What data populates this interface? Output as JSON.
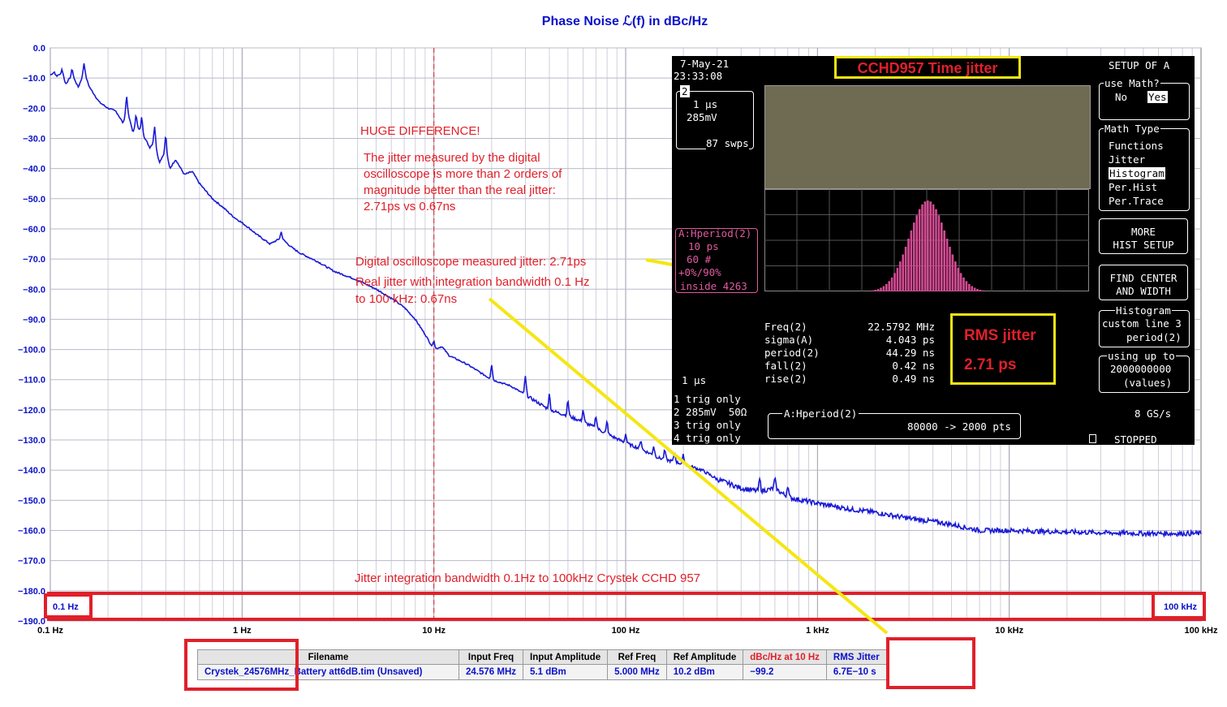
{
  "chart_data": {
    "type": "line",
    "title": "Phase Noise ℒ(f) in dBc/Hz",
    "xscale": "log",
    "xlim": [
      0.1,
      100000
    ],
    "ylim": [
      -190,
      0
    ],
    "x_ticks": [
      {
        "value": 0.1,
        "label": "0.1 Hz"
      },
      {
        "value": 1,
        "label": "1 Hz"
      },
      {
        "value": 10,
        "label": "10 Hz"
      },
      {
        "value": 100,
        "label": "100 Hz"
      },
      {
        "value": 1000,
        "label": "1 kHz"
      },
      {
        "value": 10000,
        "label": "10 kHz"
      },
      {
        "value": 100000,
        "label": "100 kHz"
      }
    ],
    "y_ticks": [
      {
        "value": 0,
        "label": "0.0"
      },
      {
        "value": -10,
        "label": "−10.0"
      },
      {
        "value": -20,
        "label": "−20.0"
      },
      {
        "value": -30,
        "label": "−30.0"
      },
      {
        "value": -40,
        "label": "−40.0"
      },
      {
        "value": -50,
        "label": "−50.0"
      },
      {
        "value": -60,
        "label": "−60.0"
      },
      {
        "value": -70,
        "label": "−70.0"
      },
      {
        "value": -80,
        "label": "−80.0"
      },
      {
        "value": -90,
        "label": "−90.0"
      },
      {
        "value": -100,
        "label": "−100.0"
      },
      {
        "value": -110,
        "label": "−110.0"
      },
      {
        "value": -120,
        "label": "−120.0"
      },
      {
        "value": -130,
        "label": "−130.0"
      },
      {
        "value": -140,
        "label": "−140.0"
      },
      {
        "value": -150,
        "label": "−150.0"
      },
      {
        "value": -160,
        "label": "−160.0"
      },
      {
        "value": -170,
        "label": "−170.0"
      },
      {
        "value": -180,
        "label": "−180.0"
      },
      {
        "value": -190,
        "label": "−190.0"
      }
    ],
    "grid": true,
    "marker_line_x": 10,
    "series": [
      {
        "color": "#1a1ad6",
        "points": [
          [
            0.1,
            -9
          ],
          [
            0.105,
            -8
          ],
          [
            0.11,
            -11
          ],
          [
            0.115,
            -7
          ],
          [
            0.12,
            -12
          ],
          [
            0.13,
            -9
          ],
          [
            0.14,
            -13
          ],
          [
            0.15,
            -8
          ],
          [
            0.16,
            -13
          ],
          [
            0.18,
            -18
          ],
          [
            0.2,
            -20
          ],
          [
            0.22,
            -21
          ],
          [
            0.24,
            -25
          ],
          [
            0.25,
            -20
          ],
          [
            0.27,
            -28
          ],
          [
            0.28,
            -26
          ],
          [
            0.3,
            -28
          ],
          [
            0.33,
            -33
          ],
          [
            0.35,
            -31
          ],
          [
            0.37,
            -38
          ],
          [
            0.4,
            -34
          ],
          [
            0.42,
            -40
          ],
          [
            0.45,
            -37
          ],
          [
            0.5,
            -42
          ],
          [
            0.55,
            -41
          ],
          [
            0.6,
            -45
          ],
          [
            0.7,
            -50
          ],
          [
            0.8,
            -53
          ],
          [
            0.9,
            -56
          ],
          [
            1,
            -58
          ],
          [
            1.1,
            -60
          ],
          [
            1.2,
            -62
          ],
          [
            1.4,
            -65
          ],
          [
            1.6,
            -63
          ],
          [
            1.8,
            -66
          ],
          [
            2,
            -68
          ],
          [
            2.5,
            -71
          ],
          [
            3,
            -74
          ],
          [
            4,
            -77
          ],
          [
            5,
            -80
          ],
          [
            6,
            -83
          ],
          [
            7,
            -86
          ],
          [
            8,
            -90
          ],
          [
            9,
            -95
          ],
          [
            10,
            -100
          ],
          [
            11,
            -99
          ],
          [
            12,
            -102
          ],
          [
            15,
            -105
          ],
          [
            20,
            -110
          ],
          [
            25,
            -112
          ],
          [
            30,
            -115
          ],
          [
            40,
            -120
          ],
          [
            50,
            -122
          ],
          [
            60,
            -124
          ],
          [
            70,
            -126
          ],
          [
            80,
            -128
          ],
          [
            100,
            -131
          ],
          [
            120,
            -133
          ],
          [
            150,
            -136
          ],
          [
            200,
            -138
          ],
          [
            250,
            -140
          ],
          [
            300,
            -143
          ],
          [
            400,
            -146
          ],
          [
            500,
            -147
          ],
          [
            600,
            -146
          ],
          [
            700,
            -149
          ],
          [
            1000,
            -151
          ],
          [
            1500,
            -153
          ],
          [
            2000,
            -154
          ],
          [
            3000,
            -156
          ],
          [
            4000,
            -157
          ],
          [
            5000,
            -158
          ],
          [
            7000,
            -160
          ],
          [
            10000,
            -160
          ],
          [
            20000,
            -160.5
          ],
          [
            50000,
            -161
          ],
          [
            100000,
            -161
          ]
        ],
        "spurs": [
          [
            0.11,
            -2
          ],
          [
            0.13,
            -2
          ],
          [
            0.15,
            -3
          ],
          [
            0.25,
            -4
          ],
          [
            0.28,
            -4
          ],
          [
            0.3,
            -5
          ],
          [
            0.35,
            -5
          ],
          [
            0.4,
            -5
          ],
          [
            1.6,
            -2
          ],
          [
            10,
            -3
          ],
          [
            20,
            -5
          ],
          [
            30,
            -6
          ],
          [
            40,
            -5
          ],
          [
            50,
            -5
          ],
          [
            60,
            -4
          ],
          [
            70,
            -4
          ],
          [
            80,
            -4
          ],
          [
            100,
            -3
          ],
          [
            120,
            -3
          ],
          [
            140,
            -3
          ],
          [
            160,
            -3
          ],
          [
            180,
            -3
          ],
          [
            200,
            -3
          ],
          [
            500,
            -4
          ],
          [
            600,
            -3
          ],
          [
            700,
            -4
          ]
        ]
      }
    ],
    "annotations": [
      "HUGE DIFFERENCE!",
      "The jitter measured by the digital",
      "oscilloscope is more than 2 orders of",
      "magnitude better than the real jitter:",
      "2.71ps vs 0.67ns",
      "Digital oscilloscope measured jitter: 2.71ps",
      "Real jitter with integration bandwidth 0.1 Hz",
      "to 100 kHz: 0.67ns",
      "Jitter integration bandwidth 0.1Hz to 100kHz Crystek CCHD 957"
    ],
    "corner_labels": {
      "left": "0.1 Hz",
      "right": "100 kHz"
    }
  },
  "scope": {
    "title": "CCHD957 Time jitter",
    "date": "7-May-21",
    "time": "23:33:08",
    "ch_box": {
      "channel": "2",
      "timebase": "1 µs",
      "volts": "285mV",
      "sweeps": "87 swps"
    },
    "hist_box": {
      "label": "A:Hperiod(2)",
      "per_div": "10 ps",
      "count": "60 #",
      "ratio": "+0%/90%",
      "inside": "inside 4263"
    },
    "measurements": [
      {
        "name": "Freq(2)",
        "value": "22.5792 MHz"
      },
      {
        "name": "sigma(A)",
        "value": "4.043 ps"
      },
      {
        "name": "period(2)",
        "value": "44.29 ns"
      },
      {
        "name": "fall(2)",
        "value": "0.42 ns"
      },
      {
        "name": "rise(2)",
        "value": "0.49 ns"
      }
    ],
    "bottom_timebase": "1 µs",
    "channels": [
      {
        "num": "1",
        "text": "trig only"
      },
      {
        "num": "2",
        "text": "285mV  50Ω"
      },
      {
        "num": "3",
        "text": "trig only"
      },
      {
        "num": "4",
        "text": "trig only"
      }
    ],
    "math_box": {
      "label": "A:Hperiod(2)",
      "points": "80000 -> 2000 pts"
    },
    "sample_rate": "8 GS/s",
    "status": "STOPPED",
    "menu": {
      "setup_label": "SETUP OF A",
      "use_math_label": "use Math?",
      "use_math_no": "No",
      "use_math_yes": "Yes",
      "math_type_label": "Math Type",
      "math_types": [
        "Functions",
        "Jitter",
        "Histogram",
        "Per.Hist",
        "Per.Trace"
      ],
      "more_hist_1": "MORE",
      "more_hist_2": "HIST SETUP",
      "find_center_1": "FIND CENTER",
      "find_center_2": "AND WIDTH",
      "histogram_label": "Histogram",
      "histogram_line1": "custom line 3",
      "histogram_line2": "period(2)",
      "using_label": "using up to",
      "using_value": "2000000000",
      "using_unit": "(values)"
    },
    "rms_label": "RMS jitter",
    "rms_value": "2.71 ps"
  },
  "results_table": {
    "headers": [
      "Filename",
      "Input Freq",
      "Input Amplitude",
      "Ref Freq",
      "Ref Amplitude",
      "dBc/Hz at 10 Hz",
      "RMS Jitter"
    ],
    "row": [
      "Crystek_24576MHz_Battery att6dB.tim (Unsaved)",
      "24.576 MHz",
      "5.1 dBm",
      "5.000 MHz",
      "10.2 dBm",
      "−99.2",
      "6.7E−10 s"
    ]
  },
  "colors": {
    "curve": "#1a1ad6",
    "annotation": "#e0202a",
    "highlight": "#f5e613",
    "axis_text": "#0a10c8"
  }
}
